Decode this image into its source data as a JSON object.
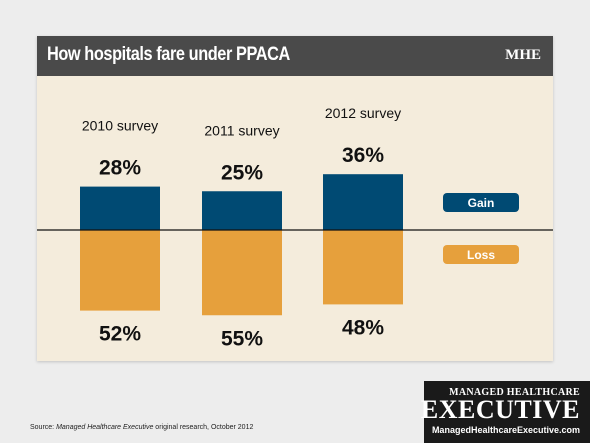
{
  "header": {
    "title": "How hospitals fare under PPACA",
    "logo": "MHE"
  },
  "chart_data": {
    "type": "bar",
    "categories": [
      "2010 survey",
      "2011 survey",
      "2012 survey"
    ],
    "series": [
      {
        "name": "Gain",
        "values": [
          28,
          25,
          36
        ],
        "labels": [
          "28%",
          "25%",
          "36%"
        ],
        "color": "#004a73"
      },
      {
        "name": "Loss",
        "values": [
          52,
          55,
          48
        ],
        "labels": [
          "52%",
          "55%",
          "48%"
        ],
        "color": "#e6a03c"
      }
    ],
    "title": "How hospitals fare under PPACA",
    "legend": "right"
  },
  "footer": {
    "source_prefix": "Source: ",
    "source_italic": "Managed Healthcare Executive",
    "source_suffix": " original research, October 2012"
  },
  "brand": {
    "line1": "Managed Healthcare",
    "line2": "Executive",
    "url": "ManagedHealthcareExecutive.com"
  }
}
